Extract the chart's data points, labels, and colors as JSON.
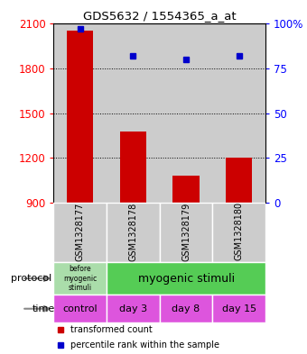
{
  "title": "GDS5632 / 1554365_a_at",
  "samples": [
    "GSM1328177",
    "GSM1328178",
    "GSM1328179",
    "GSM1328180"
  ],
  "bar_values": [
    2050,
    1380,
    1080,
    1200
  ],
  "dot_values": [
    97,
    82,
    80,
    82
  ],
  "bar_color": "#cc0000",
  "dot_color": "#0000cc",
  "ylim_left": [
    900,
    2100
  ],
  "ylim_right": [
    0,
    100
  ],
  "yticks_left": [
    900,
    1200,
    1500,
    1800,
    2100
  ],
  "yticks_right": [
    0,
    25,
    50,
    75,
    100
  ],
  "ytick_labels_right": [
    "0",
    "25",
    "50",
    "75",
    "100%"
  ],
  "hgrid_vals": [
    1200,
    1500,
    1800
  ],
  "protocol_label_left": "before\nmyogenic\nstimuli",
  "protocol_label_right": "myogenic stimuli",
  "protocol_color_left": "#aaddaa",
  "protocol_color_right": "#55cc55",
  "time_labels": [
    "control",
    "day 3",
    "day 8",
    "day 15"
  ],
  "time_color": "#dd55dd",
  "bar_bg_color": "#cccccc",
  "legend_red_label": "transformed count",
  "legend_blue_label": "percentile rank within the sample",
  "left_label_protocol": "protocol",
  "left_label_time": "time",
  "bar_width": 0.5
}
